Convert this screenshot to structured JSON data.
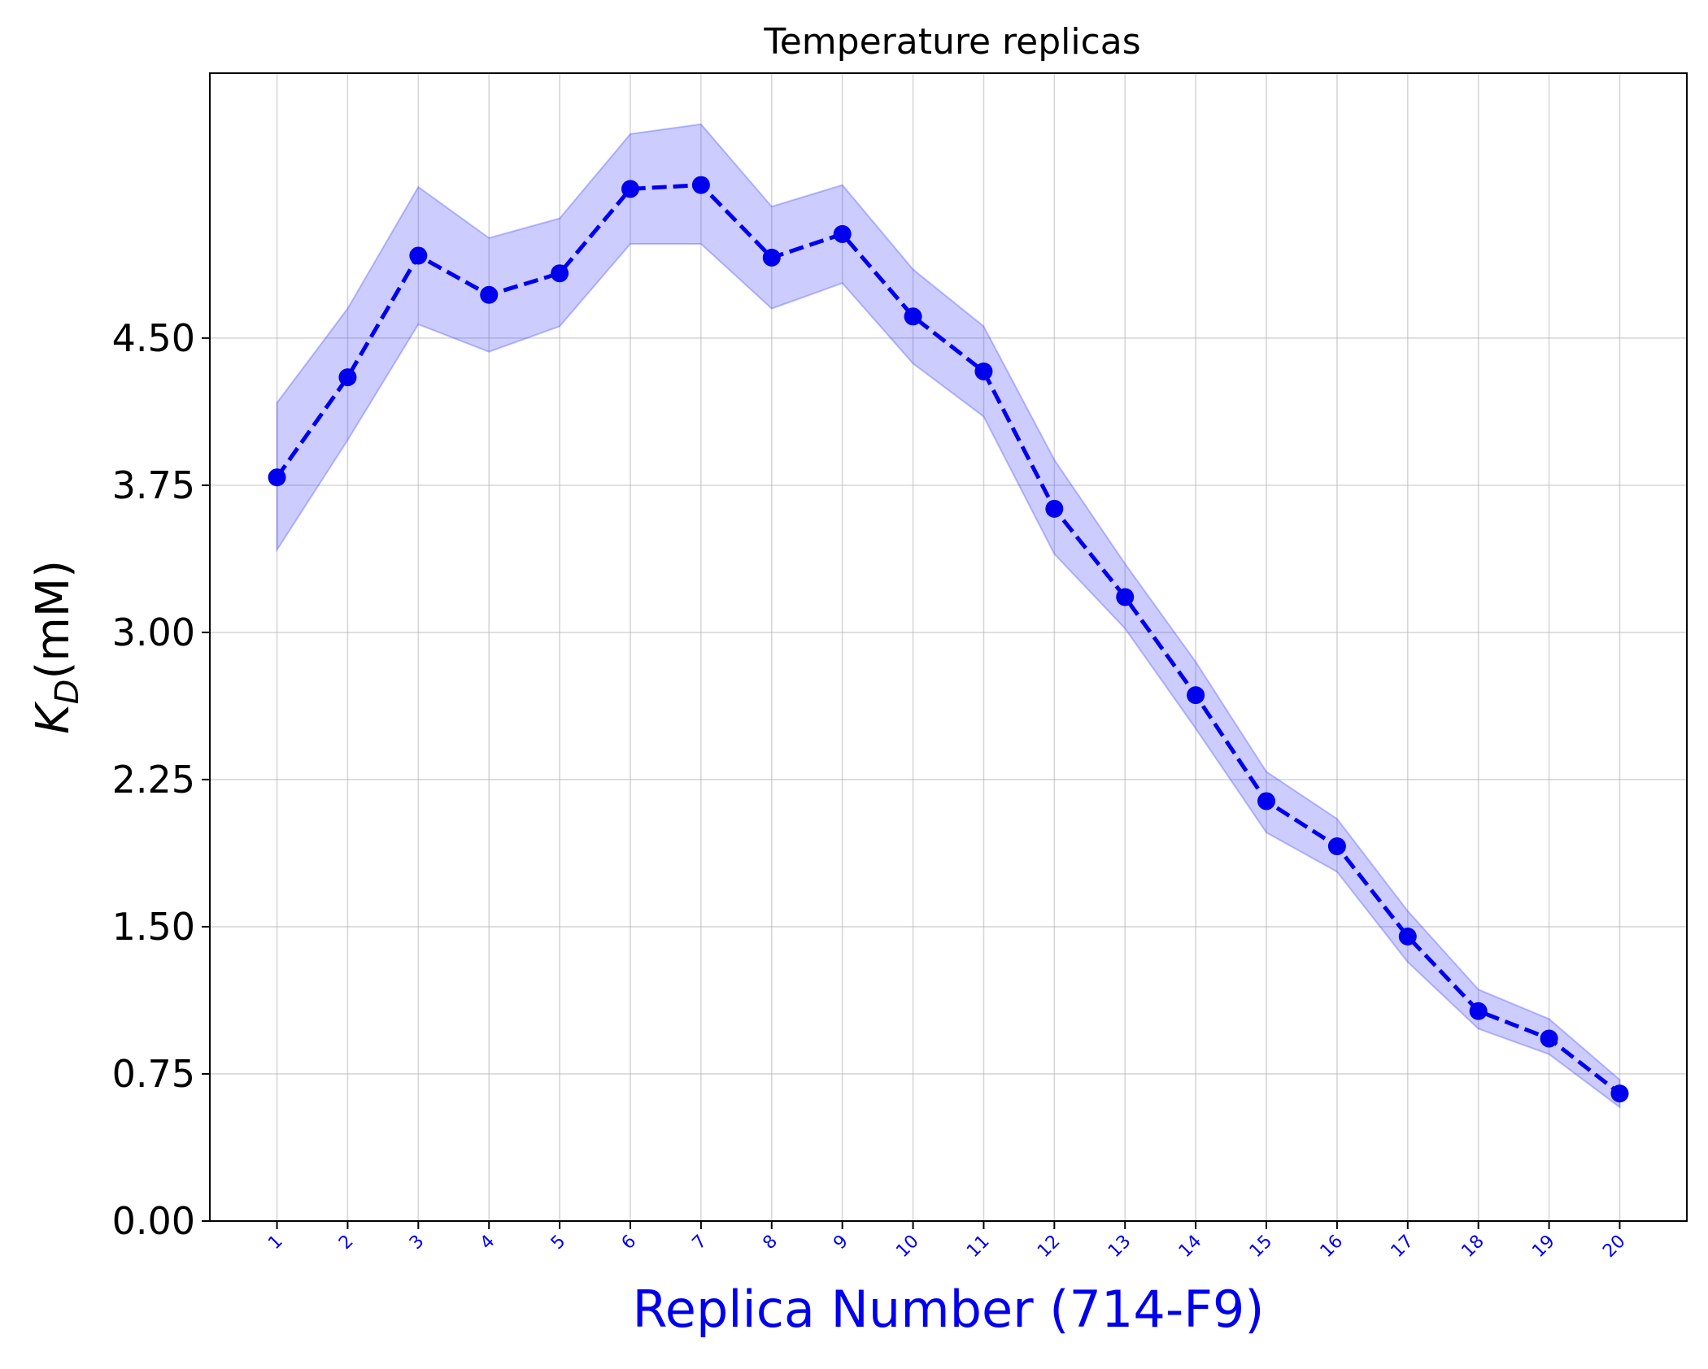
{
  "chart_data": {
    "type": "line",
    "title": "Temperature replicas",
    "xlabel": "Replica Number (714-F9)",
    "ylabel_main": "K",
    "ylabel_sub": "D",
    "ylabel_unit": "(mM)",
    "x": [
      1,
      2,
      3,
      4,
      5,
      6,
      7,
      8,
      9,
      10,
      11,
      12,
      13,
      14,
      15,
      16,
      17,
      18,
      19,
      20
    ],
    "x_tick_labels": [
      "1",
      "2",
      "3",
      "4",
      "5",
      "6",
      "7",
      "8",
      "9",
      "10",
      "11",
      "12",
      "13",
      "14",
      "15",
      "16",
      "17",
      "18",
      "19",
      "20"
    ],
    "y_ticks": [
      0.0,
      0.75,
      1.5,
      2.25,
      3.0,
      3.75,
      4.5
    ],
    "y_tick_labels": [
      "0.00",
      "0.75",
      "1.50",
      "2.25",
      "3.00",
      "3.75",
      "4.50"
    ],
    "ylim": [
      0.0,
      5.85
    ],
    "xlim": [
      0.05,
      20.95
    ],
    "grid": true,
    "series": [
      {
        "values": [
          3.79,
          4.3,
          4.92,
          4.72,
          4.83,
          5.26,
          5.28,
          4.91,
          5.03,
          4.61,
          4.33,
          3.63,
          3.18,
          2.68,
          2.14,
          1.91,
          1.45,
          1.07,
          0.93,
          0.65
        ],
        "upper": [
          4.17,
          4.65,
          5.27,
          5.01,
          5.11,
          5.54,
          5.59,
          5.17,
          5.28,
          4.85,
          4.56,
          3.88,
          3.35,
          2.85,
          2.29,
          2.05,
          1.58,
          1.18,
          1.03,
          0.72
        ],
        "lower": [
          3.42,
          3.98,
          4.57,
          4.43,
          4.56,
          4.98,
          4.98,
          4.65,
          4.78,
          4.37,
          4.1,
          3.4,
          3.02,
          2.51,
          1.98,
          1.78,
          1.32,
          0.98,
          0.85,
          0.58
        ],
        "line_color": "#0000ee",
        "band_color": "#3333ff"
      }
    ],
    "xlabel_color": "#0000ee",
    "xtick_color": "#0000ee"
  }
}
